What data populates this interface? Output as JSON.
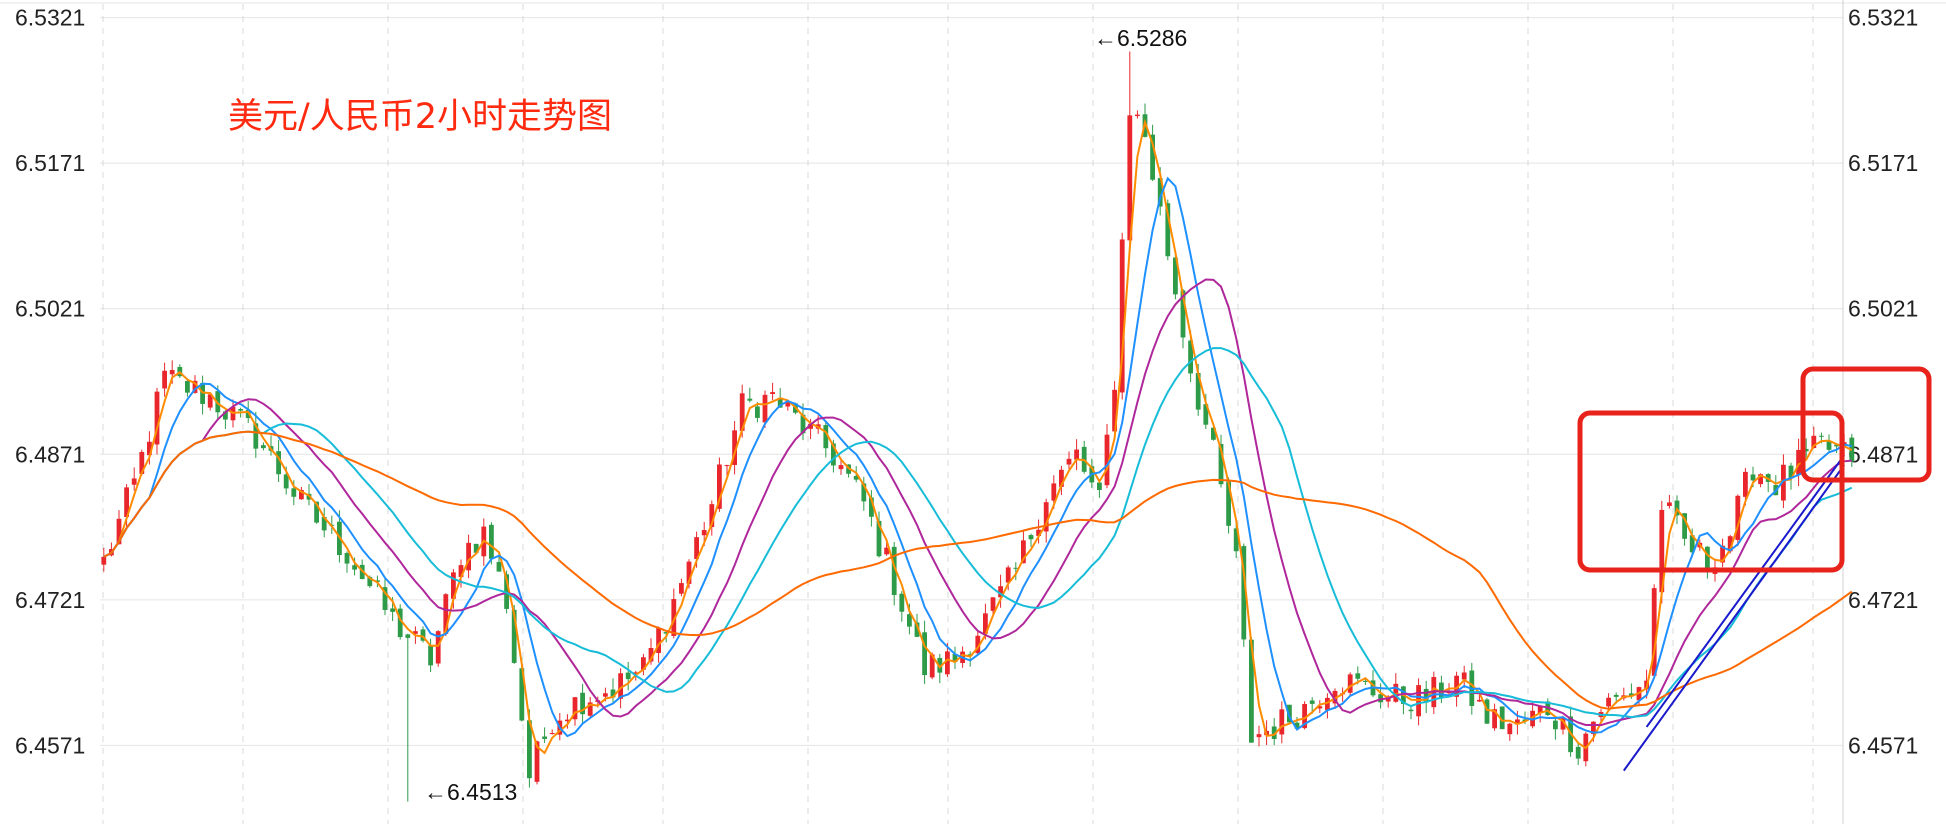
{
  "chart_data": {
    "type": "candlestick",
    "title": "美元/人民币2小时走势图",
    "y_ticks": [
      "6.5321",
      "6.5171",
      "6.5021",
      "6.4871",
      "6.4721",
      "6.4571"
    ],
    "ylim": [
      6.449,
      6.5335
    ],
    "extremes": [
      {
        "label": "←6.5286",
        "value": 6.5286,
        "bar_index": 135
      },
      {
        "label": "←6.4513",
        "value": 6.4513,
        "bar_index": 40
      }
    ],
    "anchors": [
      [
        0,
        6.476
      ],
      [
        4,
        6.484
      ],
      [
        8,
        6.495
      ],
      [
        14,
        6.493
      ],
      [
        20,
        6.489
      ],
      [
        26,
        6.482
      ],
      [
        32,
        6.477
      ],
      [
        38,
        6.47
      ],
      [
        43,
        6.466
      ],
      [
        47,
        6.477
      ],
      [
        50,
        6.479
      ],
      [
        53,
        6.472
      ],
      [
        56,
        6.454
      ],
      [
        59,
        6.46
      ],
      [
        63,
        6.462
      ],
      [
        67,
        6.463
      ],
      [
        71,
        6.465
      ],
      [
        75,
        6.472
      ],
      [
        80,
        6.482
      ],
      [
        84,
        6.492
      ],
      [
        88,
        6.493
      ],
      [
        92,
        6.49
      ],
      [
        96,
        6.487
      ],
      [
        100,
        6.482
      ],
      [
        104,
        6.474
      ],
      [
        108,
        6.465
      ],
      [
        112,
        6.466
      ],
      [
        116,
        6.47
      ],
      [
        120,
        6.475
      ],
      [
        124,
        6.483
      ],
      [
        128,
        6.487
      ],
      [
        131,
        6.482
      ],
      [
        133,
        6.495
      ],
      [
        135,
        6.523
      ],
      [
        137,
        6.52
      ],
      [
        140,
        6.508
      ],
      [
        143,
        6.496
      ],
      [
        146,
        6.487
      ],
      [
        149,
        6.476
      ],
      [
        151,
        6.458
      ],
      [
        154,
        6.459
      ],
      [
        158,
        6.461
      ],
      [
        162,
        6.464
      ],
      [
        166,
        6.463
      ],
      [
        170,
        6.462
      ],
      [
        174,
        6.462
      ],
      [
        178,
        6.464
      ],
      [
        182,
        6.46
      ],
      [
        186,
        6.459
      ],
      [
        190,
        6.461
      ],
      [
        194,
        6.457
      ],
      [
        197,
        6.461
      ],
      [
        200,
        6.462
      ],
      [
        203,
        6.464
      ],
      [
        205,
        6.482
      ],
      [
        208,
        6.478
      ],
      [
        211,
        6.476
      ],
      [
        214,
        6.479
      ],
      [
        217,
        6.486
      ],
      [
        220,
        6.484
      ],
      [
        223,
        6.486
      ],
      [
        226,
        6.488
      ],
      [
        229,
        6.487
      ]
    ],
    "moving_averages": [
      {
        "period": 3,
        "color": "#ff8c00"
      },
      {
        "period": 7,
        "color": "#1e90ff"
      },
      {
        "period": 14,
        "color": "#b0279b"
      },
      {
        "period": 22,
        "color": "#16bcd8"
      },
      {
        "period": 48,
        "color": "#ff6a00"
      }
    ],
    "up_color": "#e8262b",
    "down_color": "#2e9b48",
    "trendlines": [
      {
        "color": "#1a1acc",
        "points": [
          [
            200,
            6.4545
          ],
          [
            229,
            6.486
          ]
        ]
      },
      {
        "color": "#1a1acc",
        "points": [
          [
            203,
            6.459
          ],
          [
            229,
            6.487
          ]
        ]
      }
    ],
    "highlight_color": "#e8231c",
    "grid": true
  }
}
